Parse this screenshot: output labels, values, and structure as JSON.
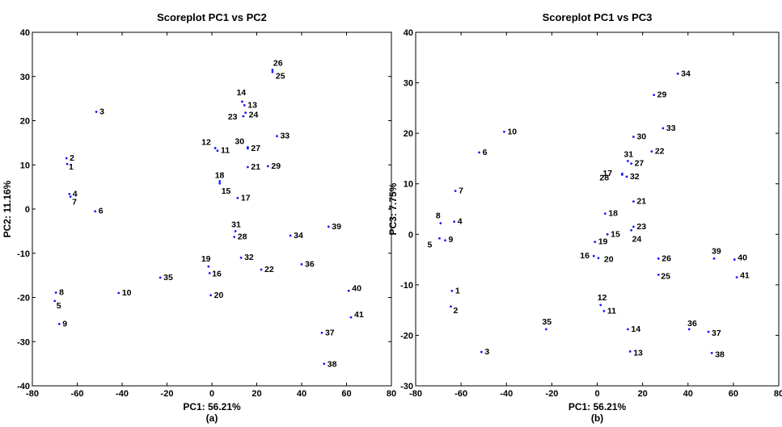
{
  "chart_data": [
    {
      "type": "scatter",
      "title": "Scoreplot PC1 vs PC2",
      "xlabel": "PC1: 56.21%",
      "ylabel": "PC2: 11.16%",
      "sublabel": "(a)",
      "xlim": [
        -80,
        80
      ],
      "ylim": [
        -40,
        40
      ],
      "xticks": [
        "-80",
        "-60",
        "-40",
        "-20",
        "0",
        "20",
        "40",
        "60",
        "80"
      ],
      "yticks": [
        "-40",
        "-30",
        "-20",
        "-10",
        "0",
        "10",
        "20",
        "30",
        "40"
      ],
      "grid": false,
      "point_color": "#1a1aff",
      "points": [
        {
          "label": "1",
          "x": -64.5,
          "y": 10.2
        },
        {
          "label": "2",
          "x": -64.8,
          "y": 11.5
        },
        {
          "label": "3",
          "x": -51.5,
          "y": 22.0
        },
        {
          "label": "4",
          "x": -63.5,
          "y": 3.4
        },
        {
          "label": "5",
          "x": -70.0,
          "y": -20.8
        },
        {
          "label": "6",
          "x": -52.0,
          "y": -0.5
        },
        {
          "label": "7",
          "x": -63.0,
          "y": 2.8
        },
        {
          "label": "8",
          "x": -69.5,
          "y": -18.9
        },
        {
          "label": "9",
          "x": -68.0,
          "y": -26.0
        },
        {
          "label": "10",
          "x": -41.5,
          "y": -19.0
        },
        {
          "label": "11",
          "x": 2.5,
          "y": 13.2
        },
        {
          "label": "12",
          "x": 1.5,
          "y": 13.8
        },
        {
          "label": "13",
          "x": 14.5,
          "y": 23.5
        },
        {
          "label": "14",
          "x": 13.5,
          "y": 24.3
        },
        {
          "label": "15",
          "x": 3.5,
          "y": 5.8
        },
        {
          "label": "16",
          "x": -1.0,
          "y": -14.5
        },
        {
          "label": "17",
          "x": 11.5,
          "y": 2.5
        },
        {
          "label": "18",
          "x": 3.5,
          "y": 6.3
        },
        {
          "label": "19",
          "x": -1.5,
          "y": -13.0
        },
        {
          "label": "20",
          "x": -0.5,
          "y": -19.5
        },
        {
          "label": "21",
          "x": 16.0,
          "y": 9.5
        },
        {
          "label": "22",
          "x": 22.0,
          "y": -13.7
        },
        {
          "label": "23",
          "x": 14.0,
          "y": 21.0
        },
        {
          "label": "24",
          "x": 15.0,
          "y": 21.8
        },
        {
          "label": "25",
          "x": 27.0,
          "y": 31.0
        },
        {
          "label": "26",
          "x": 27.0,
          "y": 31.5
        },
        {
          "label": "27",
          "x": 16.0,
          "y": 13.7
        },
        {
          "label": "28",
          "x": 10.0,
          "y": -6.3
        },
        {
          "label": "29",
          "x": 25.0,
          "y": 9.7
        },
        {
          "label": "30",
          "x": 16.0,
          "y": 14.0
        },
        {
          "label": "31",
          "x": 10.5,
          "y": -5.0
        },
        {
          "label": "32",
          "x": 13.0,
          "y": -11.0
        },
        {
          "label": "33",
          "x": 29.0,
          "y": 16.5
        },
        {
          "label": "34",
          "x": 35.0,
          "y": -6.0
        },
        {
          "label": "35",
          "x": -23.0,
          "y": -15.5
        },
        {
          "label": "36",
          "x": 40.0,
          "y": -12.5
        },
        {
          "label": "37",
          "x": 49.0,
          "y": -28.0
        },
        {
          "label": "38",
          "x": 50.0,
          "y": -35.0
        },
        {
          "label": "39",
          "x": 52.0,
          "y": -4.0
        },
        {
          "label": "40",
          "x": 61.0,
          "y": -18.5
        },
        {
          "label": "41",
          "x": 62.0,
          "y": -24.5
        }
      ]
    },
    {
      "type": "scatter",
      "title": "Scoreplot PC1 vs  PC3",
      "xlabel": "PC1: 56.21%",
      "ylabel": "PC3: 7.75%",
      "sublabel": "(b)",
      "xlim": [
        -80,
        80
      ],
      "ylim": [
        -30,
        40
      ],
      "xticks": [
        "-80",
        "-60",
        "-40",
        "-20",
        "0",
        "20",
        "40",
        "60",
        "80"
      ],
      "yticks": [
        "-30",
        "-20",
        "-10",
        "0",
        "10",
        "20",
        "30",
        "40"
      ],
      "grid": false,
      "point_color": "#1a1aff",
      "points": [
        {
          "label": "1",
          "x": -64.0,
          "y": -11.2
        },
        {
          "label": "2",
          "x": -64.5,
          "y": -14.3
        },
        {
          "label": "3",
          "x": -51.0,
          "y": -23.3
        },
        {
          "label": "4",
          "x": -63.0,
          "y": 2.5
        },
        {
          "label": "5",
          "x": -69.5,
          "y": -0.8
        },
        {
          "label": "6",
          "x": -52.0,
          "y": 16.2
        },
        {
          "label": "7",
          "x": -62.5,
          "y": 8.6
        },
        {
          "label": "8",
          "x": -69.0,
          "y": 2.2
        },
        {
          "label": "9",
          "x": -67.0,
          "y": -1.2
        },
        {
          "label": "10",
          "x": -41.0,
          "y": 20.3
        },
        {
          "label": "11",
          "x": 3.0,
          "y": -15.2
        },
        {
          "label": "12",
          "x": 1.5,
          "y": -14.0
        },
        {
          "label": "13",
          "x": 14.5,
          "y": -23.2
        },
        {
          "label": "14",
          "x": 13.5,
          "y": -18.8
        },
        {
          "label": "15",
          "x": 4.5,
          "y": 0.0
        },
        {
          "label": "16",
          "x": -1.5,
          "y": -4.3
        },
        {
          "label": "17",
          "x": 11.0,
          "y": 12.0
        },
        {
          "label": "18",
          "x": 3.5,
          "y": 4.1
        },
        {
          "label": "19",
          "x": -1.0,
          "y": -1.5
        },
        {
          "label": "20",
          "x": 0.5,
          "y": -4.7
        },
        {
          "label": "21",
          "x": 16.0,
          "y": 6.5
        },
        {
          "label": "22",
          "x": 24.0,
          "y": 16.4
        },
        {
          "label": "23",
          "x": 16.0,
          "y": 1.5
        },
        {
          "label": "24",
          "x": 15.0,
          "y": 0.8
        },
        {
          "label": "25",
          "x": 27.0,
          "y": -8.0
        },
        {
          "label": "26",
          "x": 27.0,
          "y": -4.8
        },
        {
          "label": "27",
          "x": 15.0,
          "y": 14.0
        },
        {
          "label": "28",
          "x": 11.0,
          "y": 11.8
        },
        {
          "label": "29",
          "x": 25.0,
          "y": 27.6
        },
        {
          "label": "30",
          "x": 16.0,
          "y": 19.3
        },
        {
          "label": "31",
          "x": 13.5,
          "y": 14.5
        },
        {
          "label": "32",
          "x": 13.0,
          "y": 11.4
        },
        {
          "label": "33",
          "x": 29.0,
          "y": 21.0
        },
        {
          "label": "34",
          "x": 35.5,
          "y": 31.8
        },
        {
          "label": "35",
          "x": -22.5,
          "y": -18.8
        },
        {
          "label": "36",
          "x": 40.5,
          "y": -18.8
        },
        {
          "label": "37",
          "x": 49.0,
          "y": -19.3
        },
        {
          "label": "38",
          "x": 50.5,
          "y": -23.5
        },
        {
          "label": "39",
          "x": 51.5,
          "y": -4.8
        },
        {
          "label": "40",
          "x": 60.5,
          "y": -5.0
        },
        {
          "label": "41",
          "x": 61.5,
          "y": -8.5
        }
      ]
    }
  ]
}
